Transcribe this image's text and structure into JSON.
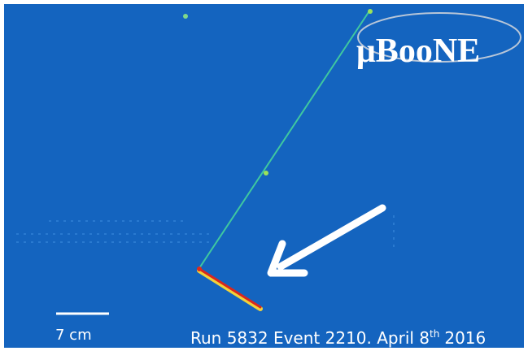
{
  "logo": {
    "text": "μBooNE"
  },
  "scale": {
    "label": "7 cm"
  },
  "caption": {
    "main": "Run 5832 Event 2210. April 8",
    "superscript": "th",
    "year": "2016"
  }
}
